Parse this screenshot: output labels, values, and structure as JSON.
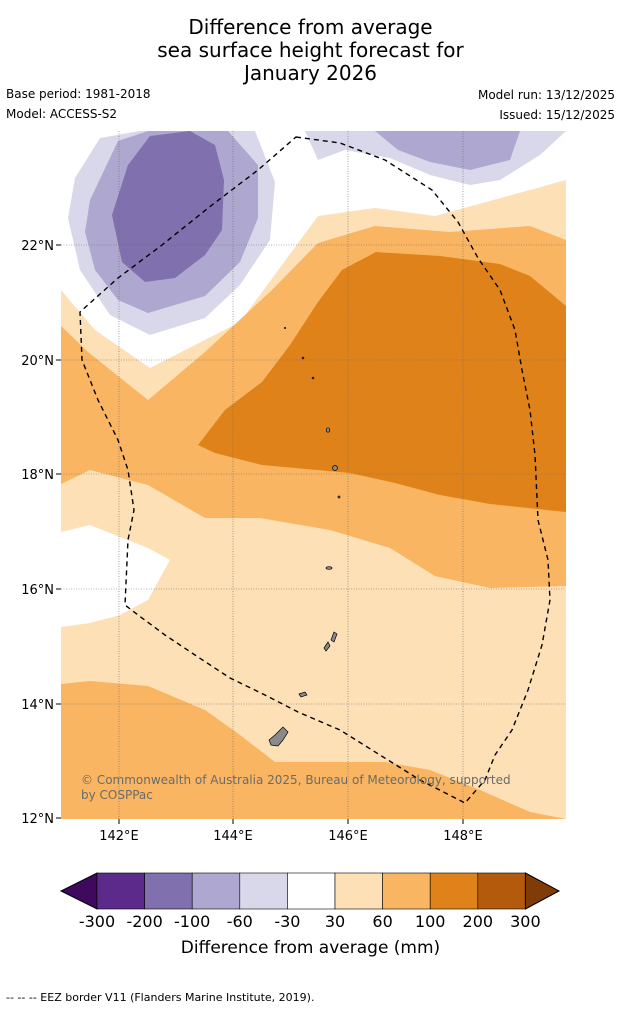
{
  "title_lines": [
    "Difference from average",
    "sea surface height forecast for",
    "January 2026"
  ],
  "base_period": "Base period: 1981-2018",
  "model": "Model: ACCESS-S2",
  "model_run": "Model run: 13/12/2025",
  "issued": "Issued: 15/12/2025",
  "lat_labels": [
    "22°N",
    "20°N",
    "18°N",
    "16°N",
    "14°N",
    "12°N"
  ],
  "lon_labels": [
    "142°E",
    "144°E",
    "146°E",
    "148°E"
  ],
  "copyright_lines": [
    "© Commonwealth of Australia 2025, Bureau of Meteorology, supported",
    "by COSPPac"
  ],
  "colorbar": {
    "ticks": [
      "-300",
      "-200",
      "-100",
      "-60",
      "-30",
      "30",
      "60",
      "100",
      "200",
      "300"
    ],
    "colors": [
      "#3f0a5e",
      "#5c2a8a",
      "#8070ae",
      "#aea7cf",
      "#d9d8ea",
      "#ffffff",
      "#fde0b6",
      "#f9b561",
      "#e0821a",
      "#b35a0c",
      "#7f3b08"
    ],
    "label": "Difference from average (mm)"
  },
  "footnote": "--  --  -- EEZ border V11 (Flanders Marine Institute, 2019)."
}
